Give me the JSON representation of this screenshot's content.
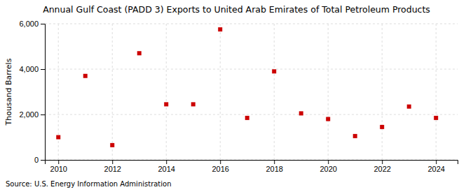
{
  "chart_data": {
    "type": "scatter",
    "title": "Annual Gulf Coast (PADD 3) Exports to United Arab Emirates of Total Petroleum Products",
    "ylabel": "Thousand Barrels",
    "annotations": [
      "Source: U.S. Energy Information Administration"
    ],
    "x": [
      2010,
      2011,
      2012,
      2013,
      2014,
      2015,
      2016,
      2017,
      2018,
      2019,
      2020,
      2021,
      2022,
      2023,
      2024
    ],
    "values": [
      1000,
      3700,
      650,
      4700,
      2450,
      2450,
      5750,
      1850,
      3900,
      2050,
      1800,
      1050,
      1450,
      2350,
      1850
    ],
    "color": "#cc0000",
    "marker": "square",
    "xlim": [
      2009.5,
      2024.8
    ],
    "ylim": [
      0,
      6000
    ],
    "xticks": [
      2010,
      2012,
      2014,
      2016,
      2018,
      2020,
      2022,
      2024
    ],
    "yticks": [
      0,
      {
        "value": 2000,
        "label": "2,000"
      },
      {
        "value": 4000,
        "label": "4,000"
      },
      {
        "value": 6000,
        "label": "6,000"
      }
    ],
    "grid": true
  }
}
